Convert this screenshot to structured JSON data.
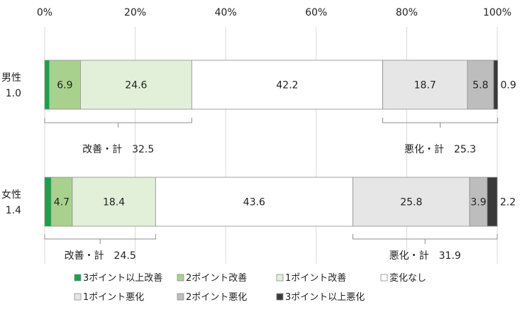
{
  "chart_data": {
    "type": "bar",
    "orientation": "horizontal",
    "stacked": true,
    "x_ticks": [
      "0%",
      "20%",
      "40%",
      "60%",
      "80%",
      "100%"
    ],
    "xlim": [
      0,
      100
    ],
    "grid": true,
    "legend_position": "bottom",
    "categories": [
      {
        "label": "男性",
        "sub": "1.0"
      },
      {
        "label": "女性",
        "sub": "1.4"
      }
    ],
    "series": [
      {
        "name": "3ポイント以上改善",
        "color": "#17a34a",
        "values": [
          1.0,
          1.4
        ],
        "labels": [
          "",
          ""
        ]
      },
      {
        "name": "2ポイント改善",
        "color": "#a9d18e",
        "values": [
          6.9,
          4.7
        ],
        "labels": [
          "6.9",
          "4.7"
        ]
      },
      {
        "name": "1ポイント改善",
        "color": "#e2f0d9",
        "values": [
          24.6,
          18.4
        ],
        "labels": [
          "24.6",
          "18.4"
        ]
      },
      {
        "name": "変化なし",
        "color": "#ffffff",
        "values": [
          42.2,
          43.6
        ],
        "labels": [
          "42.2",
          "43.6"
        ]
      },
      {
        "name": "1ポイント悪化",
        "color": "#e7e6e6",
        "values": [
          18.7,
          25.8
        ],
        "labels": [
          "18.7",
          "25.8"
        ]
      },
      {
        "name": "2ポイント悪化",
        "color": "#bdbdbd",
        "values": [
          5.8,
          3.9
        ],
        "labels": [
          "5.8",
          "3.9"
        ]
      },
      {
        "name": "3ポイント以上悪化",
        "color": "#3a3a3a",
        "values": [
          0.9,
          2.2
        ],
        "labels": [
          "0.9",
          "2.2"
        ]
      }
    ],
    "annotations": [
      {
        "row": 0,
        "kind": "improve",
        "text": "改善・計　32.5"
      },
      {
        "row": 0,
        "kind": "worsen",
        "text": "悪化・計　25.3"
      },
      {
        "row": 1,
        "kind": "improve",
        "text": "改善・計　24.5"
      },
      {
        "row": 1,
        "kind": "worsen",
        "text": "悪化・計　31.9"
      }
    ]
  }
}
